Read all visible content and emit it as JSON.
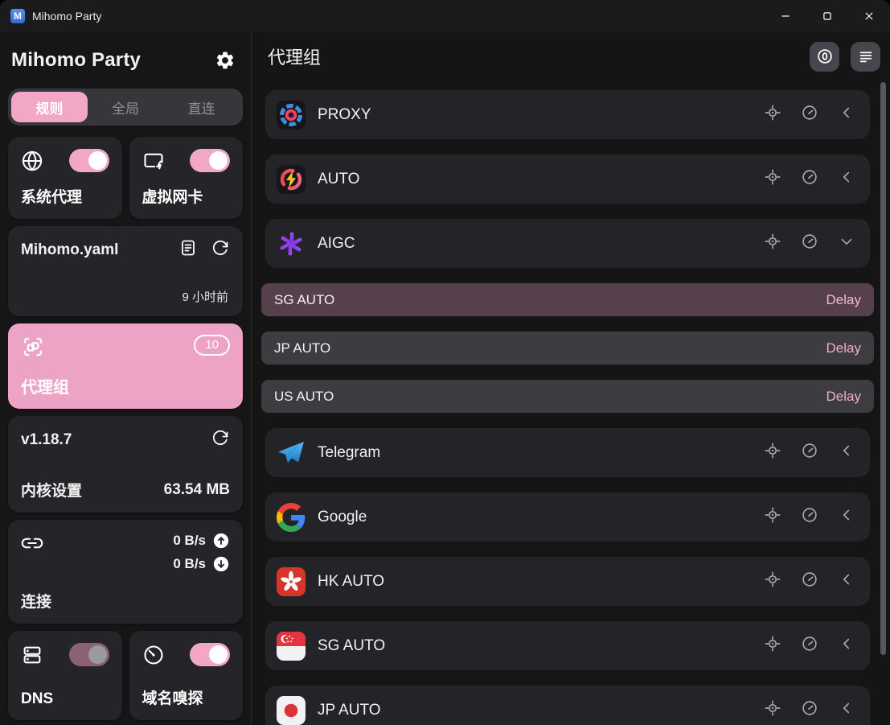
{
  "titlebar": {
    "app_title": "Mihomo Party",
    "logo_letter": "M"
  },
  "sidebar": {
    "title": "Mihomo Party",
    "mode_tabs": [
      {
        "label": "规则",
        "active": true
      },
      {
        "label": "全局",
        "active": false
      },
      {
        "label": "直连",
        "active": false
      }
    ],
    "system_proxy": {
      "label": "系统代理",
      "enabled": true
    },
    "virtual_nic": {
      "label": "虚拟网卡",
      "enabled": true
    },
    "profile": {
      "name": "Mihomo.yaml",
      "updated": "9 小时前"
    },
    "proxy_groups": {
      "label": "代理组",
      "badge": "10",
      "active": true
    },
    "core": {
      "version": "v1.18.7",
      "label": "内核设置",
      "memory": "63.54 MB"
    },
    "connections": {
      "label": "连接",
      "upload": "0 B/s",
      "download": "0 B/s"
    },
    "dns": {
      "label": "DNS",
      "enabled": false
    },
    "sniffer": {
      "label": "域名嗅探",
      "enabled": true
    }
  },
  "main": {
    "title": "代理组",
    "groups": [
      {
        "name": "PROXY",
        "icon": "proxy",
        "expanded": false
      },
      {
        "name": "AUTO",
        "icon": "auto",
        "expanded": false
      },
      {
        "name": "AIGC",
        "icon": "openai",
        "expanded": true,
        "proxies": [
          {
            "name": "SG AUTO",
            "delay_label": "Delay",
            "selected": true
          },
          {
            "name": "JP AUTO",
            "delay_label": "Delay",
            "selected": false
          },
          {
            "name": "US AUTO",
            "delay_label": "Delay",
            "selected": false
          }
        ]
      },
      {
        "name": "Telegram",
        "icon": "telegram",
        "expanded": false
      },
      {
        "name": "Google",
        "icon": "google",
        "expanded": false
      },
      {
        "name": "HK AUTO",
        "icon": "flag-hk",
        "expanded": false
      },
      {
        "name": "SG AUTO",
        "icon": "flag-sg",
        "expanded": false
      },
      {
        "name": "JP AUTO",
        "icon": "flag-jp",
        "expanded": false
      }
    ]
  },
  "colors": {
    "accent_pink": "#f2a7c6",
    "delay_text": "#f0aed1",
    "selected_node_bg": "#55404c",
    "card_bg": "#252529",
    "row_bg": "#242428"
  }
}
